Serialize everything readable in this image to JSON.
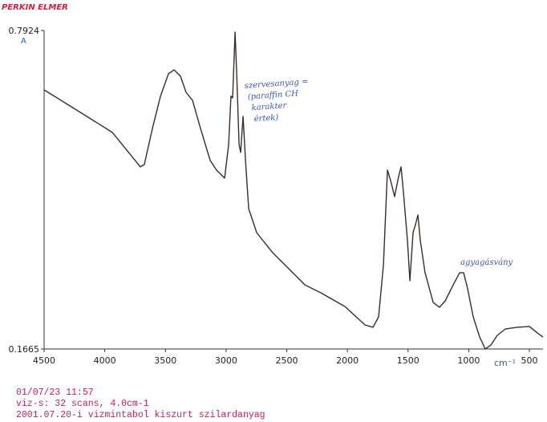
{
  "chart_data": {
    "type": "line",
    "brand": "PERKIN ELMER",
    "y_unit": "A",
    "x_unit": "cm⁻¹",
    "x": [
      4500,
      4202,
      3938,
      3707,
      3674,
      3607,
      3541,
      3475,
      3429,
      3376,
      3330,
      3277,
      3211,
      3131,
      3079,
      3012,
      2979,
      2960,
      2946,
      2926,
      2913,
      2893,
      2880,
      2860,
      2840,
      2814,
      2748,
      2616,
      2483,
      2384,
      2351,
      2219,
      2021,
      1855,
      1789,
      1743,
      1703,
      1670,
      1644,
      1611,
      1578,
      1558,
      1538,
      1505,
      1485,
      1459,
      1439,
      1419,
      1399,
      1360,
      1293,
      1241,
      1194,
      1128,
      1075,
      1042,
      1009,
      963,
      910,
      864,
      817,
      765,
      698,
      599,
      500,
      434,
      388
    ],
    "values": [
      0.6757,
      0.6316,
      0.5922,
      0.5244,
      0.5291,
      0.6001,
      0.6631,
      0.7073,
      0.7151,
      0.7025,
      0.671,
      0.6552,
      0.6001,
      0.537,
      0.5181,
      0.5023,
      0.5685,
      0.6631,
      0.66,
      0.7892,
      0.7104,
      0.5685,
      0.5528,
      0.6237,
      0.537,
      0.4424,
      0.3951,
      0.3557,
      0.3241,
      0.3005,
      0.2926,
      0.2769,
      0.25,
      0.2138,
      0.2091,
      0.2296,
      0.332,
      0.5181,
      0.4976,
      0.466,
      0.5055,
      0.5244,
      0.4739,
      0.3793,
      0.3005,
      0.3951,
      0.4109,
      0.4298,
      0.3793,
      0.3163,
      0.2579,
      0.2485,
      0.2611,
      0.2926,
      0.3163,
      0.3163,
      0.2847,
      0.2296,
      0.1901,
      0.1665,
      0.1744,
      0.1933,
      0.2059,
      0.2091,
      0.2107,
      0.198,
      0.1901
    ],
    "color": "#3b2b2b",
    "xlim": [
      4500,
      388
    ],
    "ylim": [
      0.1665,
      0.7924
    ],
    "xticks": [
      4500,
      4000,
      3500,
      3000,
      2500,
      2000,
      1500,
      1000,
      500
    ],
    "yticks": [
      0.1665,
      0.7924
    ],
    "annotations": [
      {
        "lines": [
          "szervesanyag =",
          "(paraffin CH",
          "karakter",
          "értek)"
        ]
      },
      {
        "lines": [
          "agyagásvány"
        ]
      }
    ],
    "footer": [
      "01/07/23  11:57",
      "viz-s: 32 scans, 4.0cm-1",
      "2001.07.20-i vizmintabol kiszurt szilardanyag"
    ]
  }
}
